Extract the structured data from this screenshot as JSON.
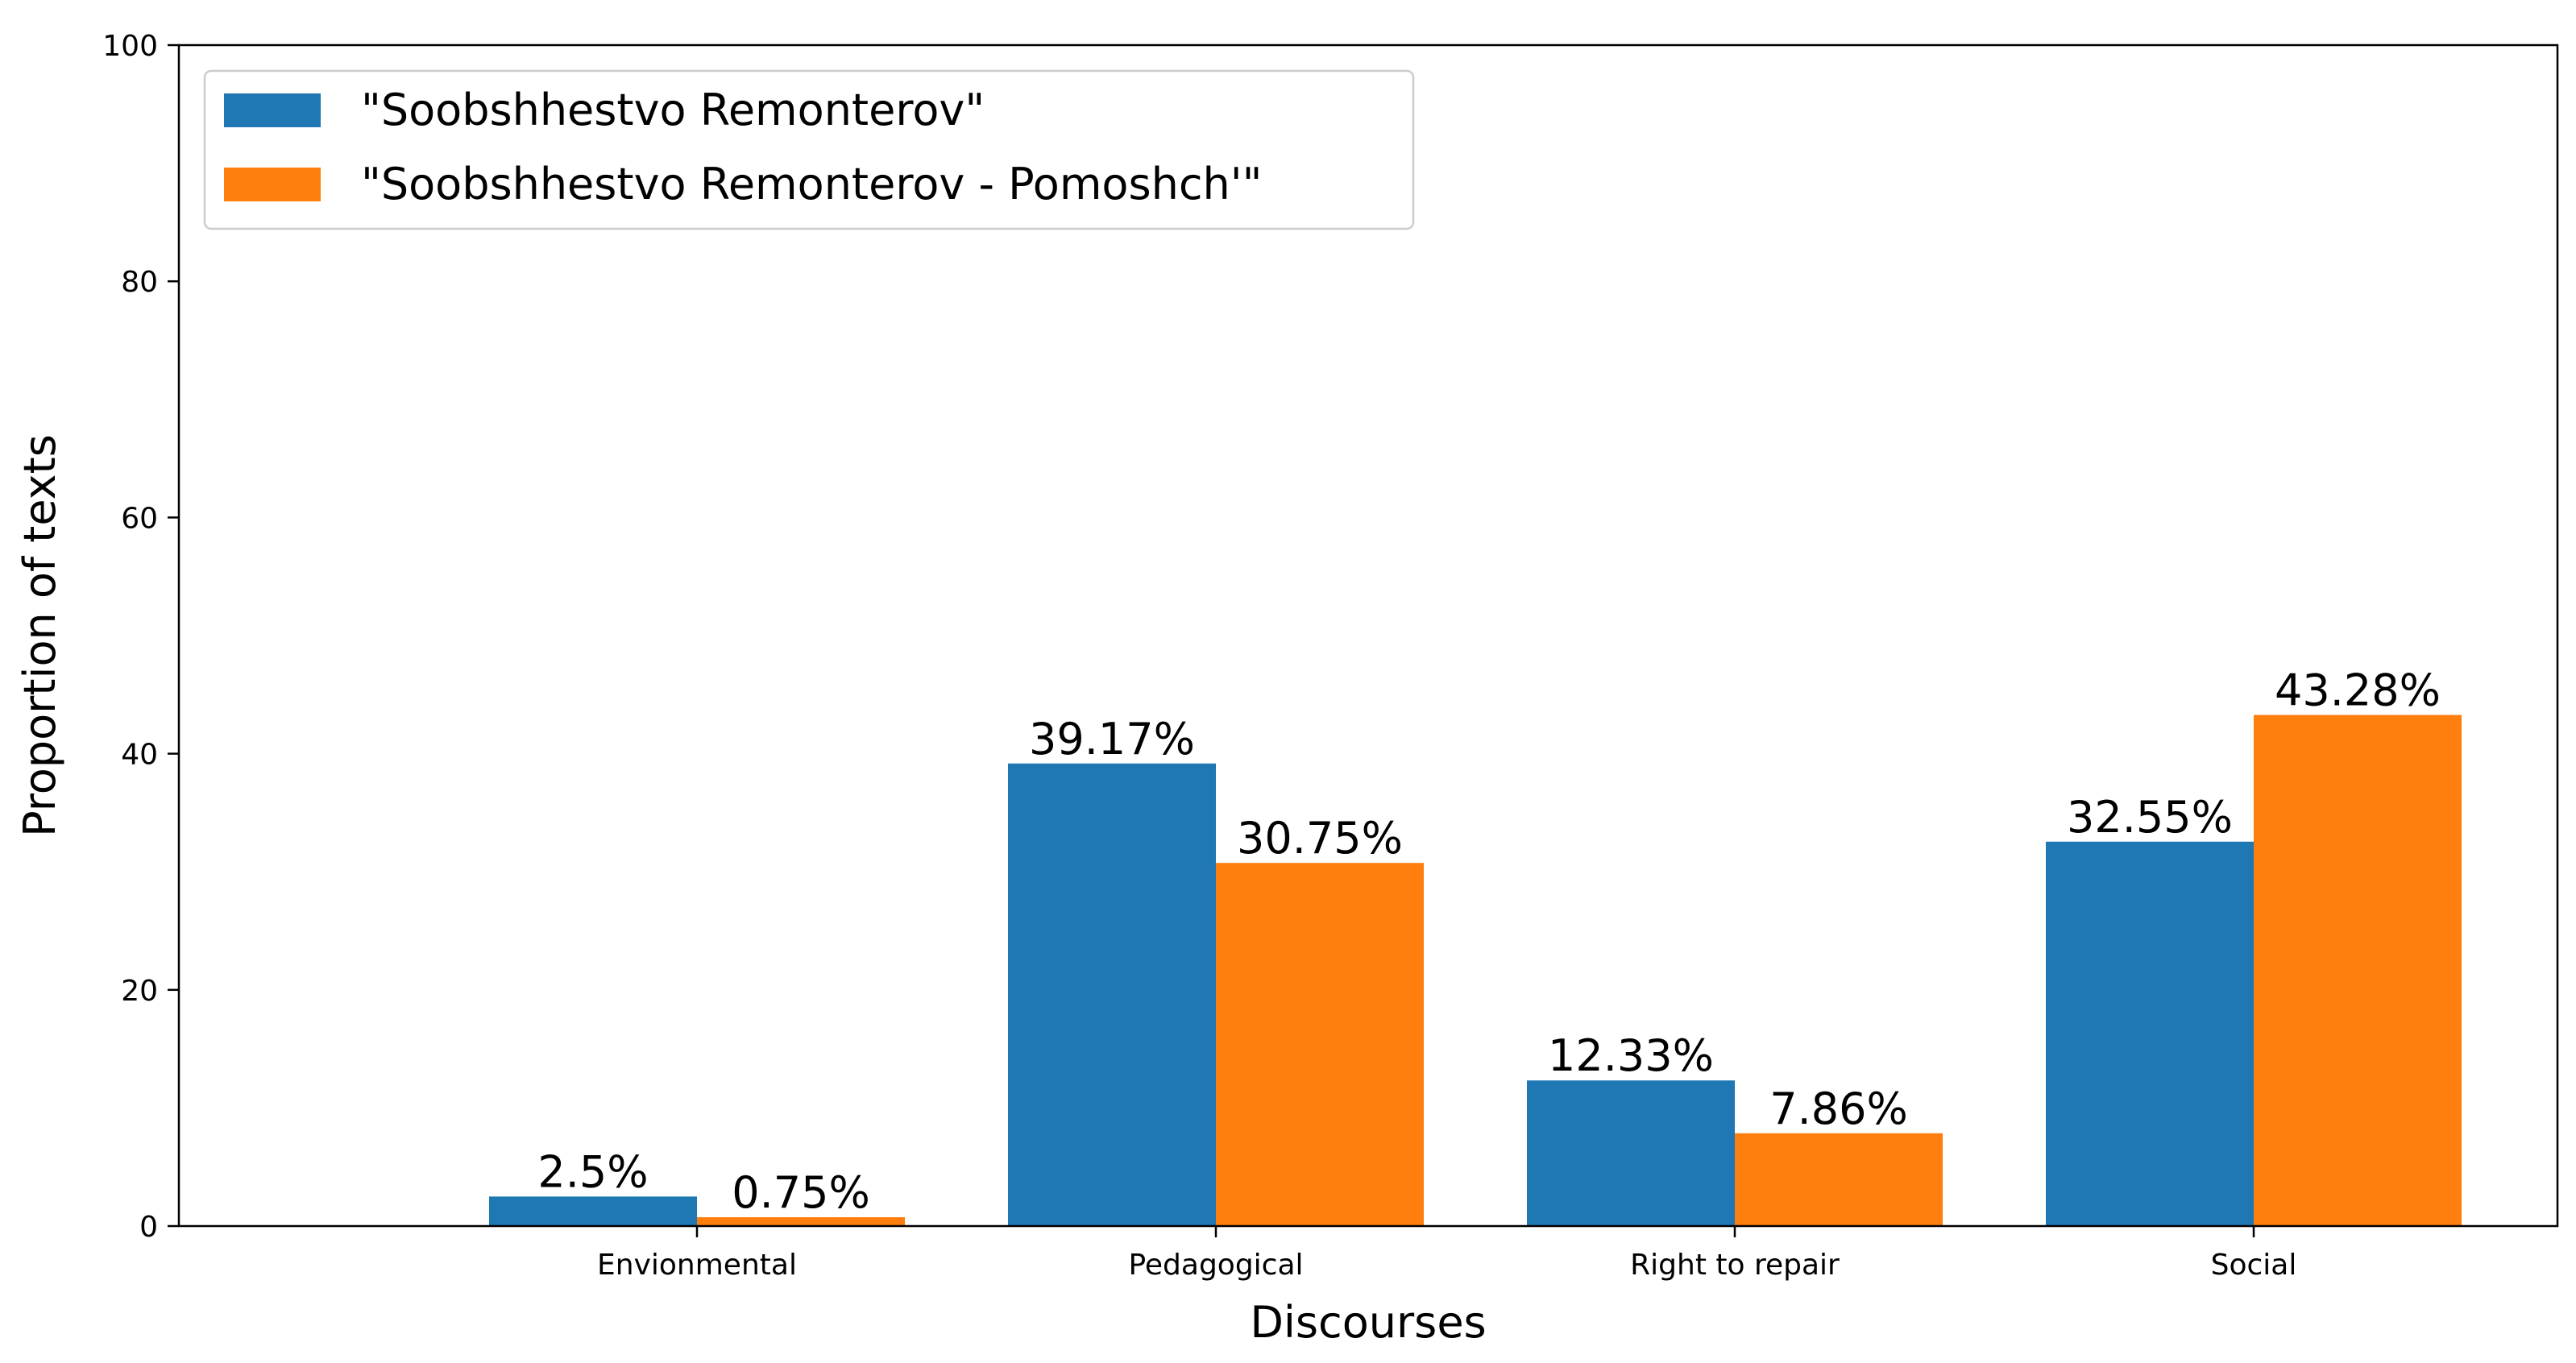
{
  "chart_data": {
    "type": "bar",
    "title": "",
    "xlabel": "Discourses",
    "ylabel": "Proportion of texts",
    "ylim": [
      0,
      100
    ],
    "yticks": [
      0,
      20,
      40,
      60,
      80,
      100
    ],
    "categories": [
      "Envionmental",
      "Pedagogical",
      "Right to repair",
      "Social"
    ],
    "series": [
      {
        "name": "\"Soobshhestvo Remonterov\"",
        "color": "#1f77b4",
        "values": [
          2.5,
          39.17,
          12.33,
          32.55
        ],
        "labels": [
          "2.5%",
          "39.17%",
          "12.33%",
          "32.55%"
        ]
      },
      {
        "name": "\"Soobshhestvo Remonterov - Pomoshch'\"",
        "color": "#ff7f0e",
        "values": [
          0.75,
          30.75,
          7.86,
          43.28
        ],
        "labels": [
          "0.75%",
          "30.75%",
          "7.86%",
          "43.28%"
        ]
      }
    ],
    "legend_position": "top-left",
    "grid": false
  }
}
